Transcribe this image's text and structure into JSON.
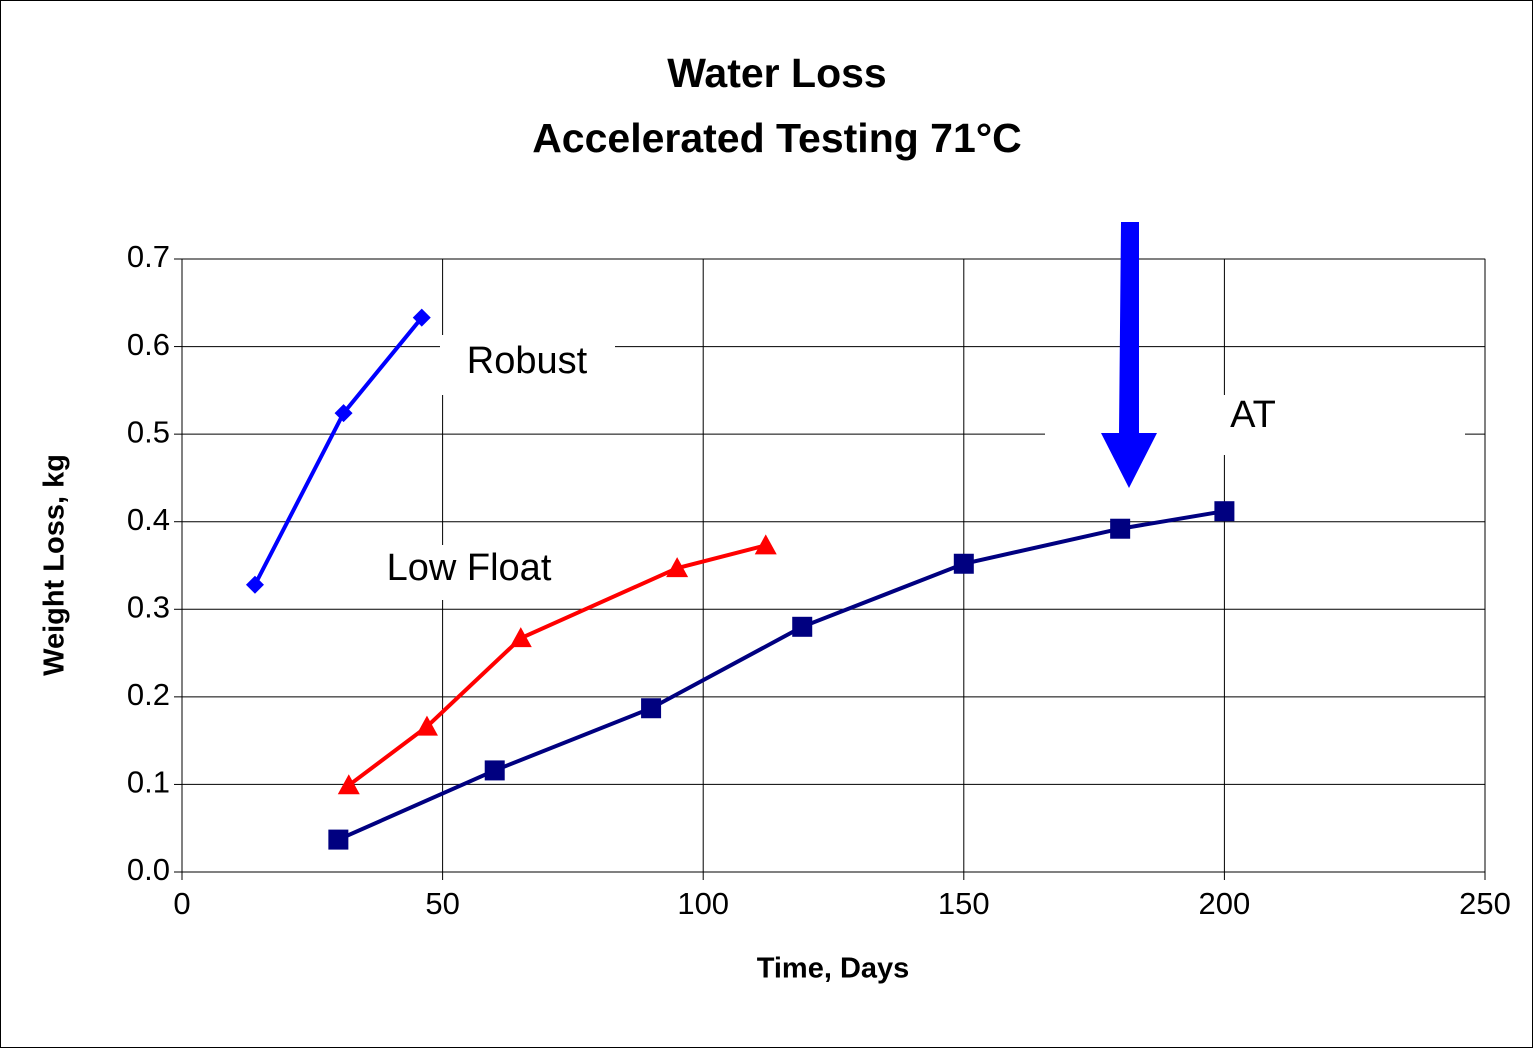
{
  "chart_data": {
    "type": "line",
    "title": [
      "Water Loss",
      "Accelerated Testing 71°C"
    ],
    "x_label": "Time, Days",
    "y_label": "Weight Loss, kg",
    "xlim": [
      0,
      250
    ],
    "xticks": [
      0,
      50,
      100,
      150,
      200,
      250
    ],
    "ylim": [
      0,
      0.7
    ],
    "yticks": [
      {
        "value": 0,
        "label": "0.0"
      },
      0.1,
      0.2,
      0.3,
      0.4,
      0.5,
      0.6,
      0.7
    ],
    "grid": true,
    "annotations": [
      "Robust",
      "Low Float",
      "AT"
    ],
    "series": [
      {
        "name": "Robust",
        "color": "#0000ff",
        "marker": "diamond",
        "x": [
          14,
          31,
          46
        ],
        "values": [
          0.328,
          0.524,
          0.633
        ]
      },
      {
        "name": "Low Float",
        "color": "#ff0000",
        "marker": "triangle",
        "x": [
          32,
          47,
          65,
          95,
          112
        ],
        "values": [
          0.099,
          0.166,
          0.267,
          0.347,
          0.373
        ]
      },
      {
        "name": "AT",
        "color": "#000080",
        "marker": "square",
        "x": [
          30,
          60,
          90,
          119,
          150,
          180,
          200
        ],
        "values": [
          0.037,
          0.116,
          0.187,
          0.28,
          0.352,
          0.392,
          0.412
        ]
      }
    ]
  }
}
